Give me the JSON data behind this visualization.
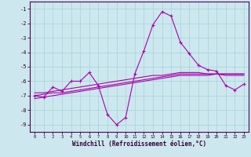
{
  "xlabel": "Windchill (Refroidissement éolien,°C)",
  "x": [
    0,
    1,
    2,
    3,
    4,
    5,
    6,
    7,
    8,
    9,
    10,
    11,
    12,
    13,
    14,
    15,
    16,
    17,
    18,
    19,
    20,
    21,
    22,
    23
  ],
  "line_main": [
    -7.0,
    -7.1,
    -6.4,
    -6.7,
    -6.0,
    -6.0,
    -5.4,
    -6.3,
    -8.3,
    -9.0,
    -8.5,
    -5.5,
    -3.9,
    -2.1,
    -1.2,
    -1.5,
    -3.3,
    -4.1,
    -4.9,
    -5.2,
    -5.3,
    -6.3,
    -6.6,
    -6.2
  ],
  "line_trend1": [
    -7.0,
    -6.9,
    -6.8,
    -6.8,
    -6.7,
    -6.6,
    -6.5,
    -6.4,
    -6.3,
    -6.2,
    -6.1,
    -6.0,
    -5.9,
    -5.8,
    -5.7,
    -5.6,
    -5.5,
    -5.5,
    -5.5,
    -5.5,
    -5.5,
    -5.5,
    -5.5,
    -5.5
  ],
  "line_trend2": [
    -7.2,
    -7.1,
    -7.0,
    -6.9,
    -6.8,
    -6.7,
    -6.6,
    -6.5,
    -6.4,
    -6.3,
    -6.2,
    -6.1,
    -6.0,
    -5.9,
    -5.8,
    -5.7,
    -5.6,
    -5.6,
    -5.6,
    -5.6,
    -5.5,
    -5.6,
    -5.6,
    -5.6
  ],
  "line_trend3": [
    -6.8,
    -6.8,
    -6.7,
    -6.6,
    -6.5,
    -6.4,
    -6.3,
    -6.2,
    -6.1,
    -6.0,
    -5.9,
    -5.8,
    -5.7,
    -5.6,
    -5.6,
    -5.5,
    -5.4,
    -5.4,
    -5.4,
    -5.5,
    -5.5,
    -5.5,
    -5.5,
    -5.5
  ],
  "bg_color": "#cce8ee",
  "line_color": "#aa00aa",
  "grid_color": "#aad4dd",
  "ylim": [
    -9.5,
    -0.5
  ],
  "xlim": [
    -0.5,
    23.5
  ],
  "yticks": [
    -9,
    -8,
    -7,
    -6,
    -5,
    -4,
    -3,
    -2,
    -1
  ],
  "xticks": [
    0,
    1,
    2,
    3,
    4,
    5,
    6,
    7,
    8,
    9,
    10,
    11,
    12,
    13,
    14,
    15,
    16,
    17,
    18,
    19,
    20,
    21,
    22,
    23
  ]
}
